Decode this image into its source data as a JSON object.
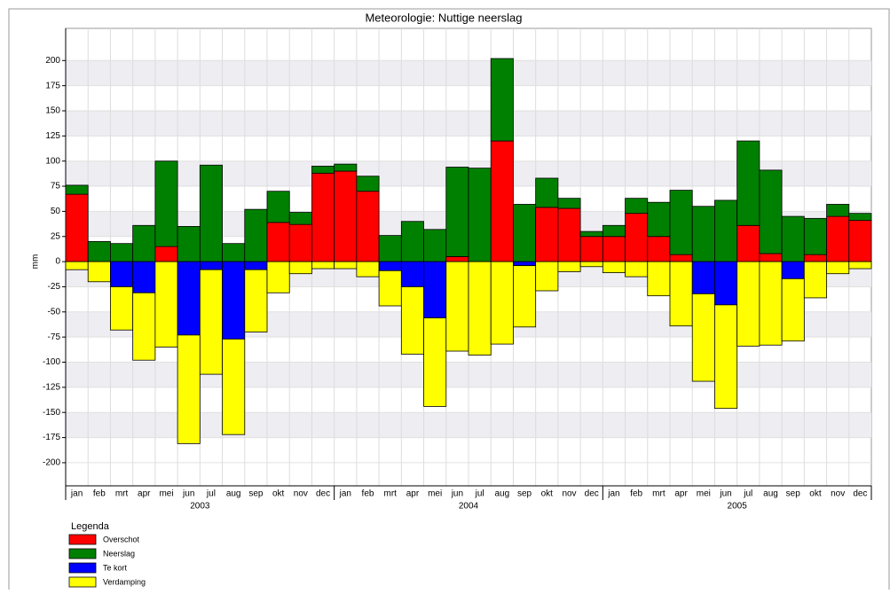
{
  "chart_data": {
    "type": "bar",
    "stacked": true,
    "title": "Meteorologie: Nuttige neerslag",
    "y_label": "mm",
    "categories": [
      "jan",
      "feb",
      "mrt",
      "apr",
      "mei",
      "jun",
      "jul",
      "aug",
      "sep",
      "okt",
      "nov",
      "dec",
      "jan",
      "feb",
      "mrt",
      "apr",
      "mei",
      "jun",
      "jul",
      "aug",
      "sep",
      "okt",
      "nov",
      "dec",
      "jan",
      "feb",
      "mrt",
      "apr",
      "mei",
      "jun",
      "jul",
      "aug",
      "sep",
      "okt",
      "nov",
      "dec"
    ],
    "years": [
      "2003",
      "2004",
      "2005"
    ],
    "series": [
      {
        "name": "Overschot",
        "color": "#ff0000",
        "values": [
          67,
          0,
          0,
          0,
          15,
          0,
          0,
          0,
          0,
          39,
          37,
          88,
          90,
          70,
          0,
          0,
          0,
          5,
          0,
          120,
          0,
          54,
          53,
          25,
          25,
          48,
          25,
          7,
          0,
          0,
          36,
          8,
          0,
          7,
          45,
          41
        ]
      },
      {
        "name": "Neerslag",
        "color": "#008000",
        "values": [
          9,
          20,
          18,
          36,
          85,
          35,
          96,
          18,
          52,
          31,
          12,
          7,
          7,
          15,
          26,
          40,
          32,
          89,
          93,
          82,
          57,
          29,
          10,
          5,
          11,
          15,
          34,
          64,
          55,
          61,
          84,
          83,
          45,
          36,
          12,
          7
        ]
      },
      {
        "name": "Te kort",
        "color": "#0000ff",
        "values": [
          0,
          0,
          -25,
          -31,
          0,
          -73,
          -8,
          -77,
          -8,
          0,
          0,
          0,
          0,
          0,
          -9,
          -25,
          -56,
          0,
          0,
          0,
          -4,
          0,
          0,
          0,
          0,
          0,
          0,
          0,
          -32,
          -43,
          0,
          0,
          -17,
          0,
          0,
          0
        ]
      },
      {
        "name": "Verdamping",
        "color": "#ffff00",
        "values": [
          -8,
          -20,
          -43,
          -67,
          -85,
          -108,
          -104,
          -95,
          -62,
          -31,
          -12,
          -7,
          -7,
          -15,
          -35,
          -67,
          -88,
          -89,
          -93,
          -82,
          -61,
          -29,
          -10,
          -5,
          -11,
          -15,
          -34,
          -64,
          -87,
          -103,
          -84,
          -83,
          -62,
          -36,
          -12,
          -7
        ]
      }
    ],
    "ylim": [
      -223,
      232
    ],
    "yticks": [
      -200,
      -175,
      -150,
      -125,
      -100,
      -75,
      -50,
      -25,
      0,
      25,
      50,
      75,
      100,
      125,
      150,
      175,
      200
    ],
    "grid": true,
    "legend_title": "Legenda"
  }
}
